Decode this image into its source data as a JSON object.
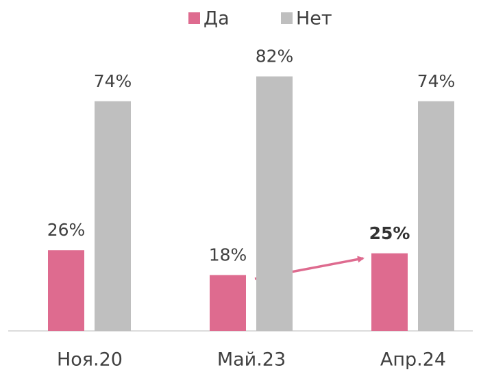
{
  "chart_data": {
    "type": "bar",
    "categories": [
      "Ноя.20",
      "Май.23",
      "Апр.24"
    ],
    "series": [
      {
        "name": "Да",
        "color": "#de6b8f",
        "values": [
          26,
          18,
          25
        ],
        "value_labels": [
          "26%",
          "18%",
          "25%"
        ]
      },
      {
        "name": "Нет",
        "color": "#bfbfbf",
        "values": [
          74,
          82,
          74
        ],
        "value_labels": [
          "74%",
          "82%",
          "74%"
        ]
      }
    ],
    "legend": "top"
  }
}
